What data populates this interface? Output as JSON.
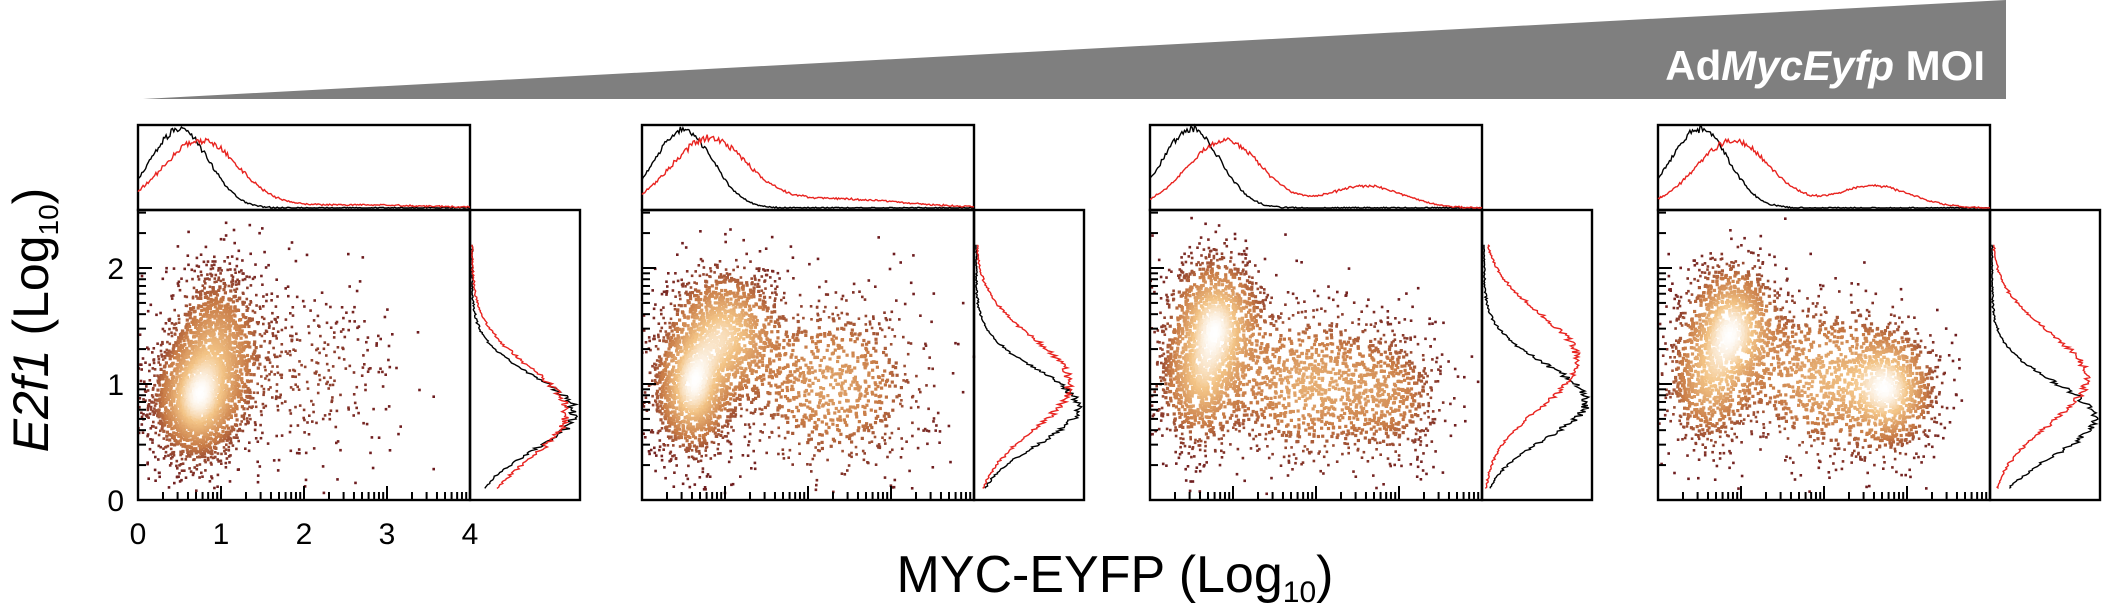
{
  "figure": {
    "moi_label": {
      "prefix": "Ad",
      "italic": "MycEyfp",
      "suffix": " MOI"
    },
    "y_title": {
      "gene": "E2f1",
      "unit_open": " (Log",
      "unit_sub": "10",
      "unit_close": ")"
    },
    "x_title": {
      "text": "MYC-EYFP (Log",
      "sub": "10",
      "close": ")"
    },
    "colors": {
      "wedge": "#7f7f7f",
      "control_histogram": "#000000",
      "treated_histogram": "#e8231f",
      "density_low": "#6b1a1e",
      "density_mid": "#c77a45",
      "density_high": "#f3c486",
      "density_peak": "#ffffff"
    }
  },
  "chart_data": [
    {
      "type": "scatter",
      "panel": 1,
      "xlim": [
        0,
        4
      ],
      "ylim": [
        0,
        2.5
      ],
      "x_tick_labels": [
        "0",
        "1",
        "2",
        "3",
        "4"
      ],
      "y_tick_labels": [
        "0",
        "1",
        "2"
      ],
      "clusters": [
        {
          "x": 0.7,
          "y": 0.85,
          "sx": 0.28,
          "sy": 0.28,
          "w": 0.55
        },
        {
          "x": 0.95,
          "y": 1.35,
          "sx": 0.3,
          "sy": 0.35,
          "w": 0.35
        },
        {
          "x": 2.0,
          "y": 1.1,
          "sx": 0.6,
          "sy": 0.4,
          "w": 0.1
        }
      ],
      "x_hist": {
        "control_peak": 0.5,
        "treated_peak": 0.75
      },
      "y_hist": {
        "control_peak": 0.75,
        "treated_peak": 0.75
      }
    },
    {
      "type": "scatter",
      "panel": 2,
      "xlim": [
        0,
        4
      ],
      "ylim": [
        0,
        2.5
      ],
      "clusters": [
        {
          "x": 0.6,
          "y": 0.95,
          "sx": 0.25,
          "sy": 0.3,
          "w": 0.4
        },
        {
          "x": 1.0,
          "y": 1.45,
          "sx": 0.35,
          "sy": 0.3,
          "w": 0.35
        },
        {
          "x": 2.3,
          "y": 1.0,
          "sx": 0.6,
          "sy": 0.4,
          "w": 0.25
        }
      ],
      "x_hist": {
        "control_peak": 0.5,
        "treated_peak": 0.8,
        "treated_tail": 2.2
      },
      "y_hist": {
        "control_peak": 0.8,
        "treated_peak": 1.0
      }
    },
    {
      "type": "scatter",
      "panel": 3,
      "xlim": [
        0,
        4
      ],
      "ylim": [
        0,
        2.5
      ],
      "clusters": [
        {
          "x": 0.8,
          "y": 1.55,
          "sx": 0.3,
          "sy": 0.3,
          "w": 0.35
        },
        {
          "x": 0.6,
          "y": 1.0,
          "sx": 0.28,
          "sy": 0.3,
          "w": 0.25
        },
        {
          "x": 1.9,
          "y": 1.0,
          "sx": 0.55,
          "sy": 0.35,
          "w": 0.25
        },
        {
          "x": 2.9,
          "y": 0.9,
          "sx": 0.35,
          "sy": 0.3,
          "w": 0.15
        }
      ],
      "x_hist": {
        "control_peak": 0.5,
        "treated_peak": 0.9,
        "treated_second_peak": 2.6
      },
      "y_hist": {
        "control_peak": 0.85,
        "treated_peak": 1.2
      }
    },
    {
      "type": "scatter",
      "panel": 4,
      "xlim": [
        0,
        4
      ],
      "ylim": [
        0,
        2.5
      ],
      "clusters": [
        {
          "x": 0.9,
          "y": 1.5,
          "sx": 0.3,
          "sy": 0.3,
          "w": 0.3
        },
        {
          "x": 0.6,
          "y": 1.0,
          "sx": 0.28,
          "sy": 0.3,
          "w": 0.2
        },
        {
          "x": 2.0,
          "y": 1.05,
          "sx": 0.5,
          "sy": 0.35,
          "w": 0.22
        },
        {
          "x": 2.8,
          "y": 0.95,
          "sx": 0.3,
          "sy": 0.28,
          "w": 0.28
        }
      ],
      "x_hist": {
        "control_peak": 0.5,
        "treated_peak": 0.9,
        "treated_second_peak": 2.6
      },
      "y_hist": {
        "control_peak": 0.7,
        "treated_peak": 1.05
      }
    }
  ]
}
